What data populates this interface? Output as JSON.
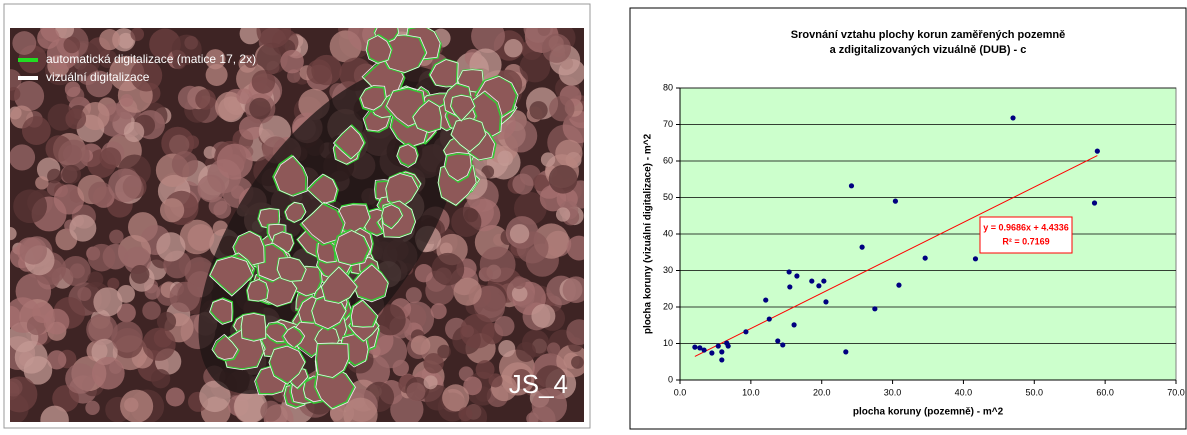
{
  "image": {
    "legend": [
      "automatická digitalizace (matice 17, 2x)",
      "vizuální digitalizace"
    ],
    "label": "JS_4"
  },
  "chart_data": {
    "type": "scatter",
    "title": [
      "Srovnání vztahu plochy korun zaměřených pozemně",
      "a zdigitalizovaných vizuálně (DUB) - c"
    ],
    "x_label": "plocha koruny (pozemně) - m^2",
    "y_label": "plocha koruny (vizuální digitalizace) - m^2",
    "series": [
      {
        "color": "#000080",
        "x": [
          2.1,
          2.8,
          3.4,
          4.5,
          5.4,
          5.9,
          5.9,
          6.6,
          6.8,
          9.3,
          12.1,
          12.6,
          13.8,
          14.5,
          15.4,
          15.5,
          16.1,
          16.5,
          18.6,
          19.6,
          20.3,
          20.6,
          23.4,
          24.2,
          25.7,
          27.5,
          30.4,
          30.9,
          34.6,
          41.7,
          47.0,
          58.5,
          58.9
        ],
        "values": [
          9.0,
          8.8,
          8.2,
          7.4,
          9.3,
          7.7,
          5.5,
          10.1,
          9.3,
          13.2,
          21.9,
          16.7,
          10.7,
          9.6,
          29.6,
          25.5,
          15.1,
          28.5,
          27.1,
          25.8,
          27.1,
          21.4,
          7.7,
          53.2,
          36.4,
          19.5,
          49.0,
          26.0,
          33.4,
          33.2,
          71.8,
          48.5,
          62.7
        ]
      }
    ],
    "trendline": {
      "color": "#ff0000",
      "slope": 0.9686,
      "intercept": 4.4336,
      "equation": "y = 0.9686x + 4.4336",
      "r2_label": "R² = 0.7169"
    },
    "xlim": [
      0,
      70
    ],
    "xticks": [
      {
        "value": 0,
        "label": "0.0"
      },
      {
        "value": 10,
        "label": "10.0"
      },
      {
        "value": 20,
        "label": "20.0"
      },
      {
        "value": 30,
        "label": "30.0"
      },
      {
        "value": 40,
        "label": "40.0"
      },
      {
        "value": 50,
        "label": "50.0"
      },
      {
        "value": 60,
        "label": "60.0"
      },
      {
        "value": 70,
        "label": "70.0"
      }
    ],
    "ylim": [
      0,
      80
    ],
    "yticks": [
      0,
      10,
      20,
      30,
      40,
      50,
      60,
      70,
      80
    ],
    "grid": true,
    "plot_background": "#ccffcc"
  }
}
